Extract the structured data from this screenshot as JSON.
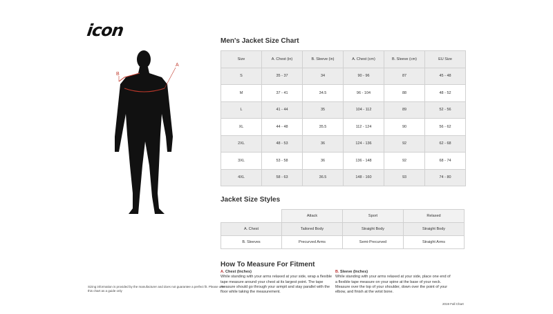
{
  "logo": "icon",
  "figure": {
    "label_a": "A",
    "label_b": "B",
    "accent": "#c0392b"
  },
  "size_chart": {
    "title": "Men's Jacket Size Chart",
    "headers": [
      "Size",
      "A. Chest (in)",
      "B. Sleeve (in)",
      "A. Chest (cm)",
      "B. Sleeve (cm)",
      "EU Size"
    ],
    "rows": [
      [
        "S",
        "35 - 37",
        "34",
        "90 - 96",
        "87",
        "45 - 48"
      ],
      [
        "M",
        "37 - 41",
        "34.5",
        "96 - 104",
        "88",
        "48 - 52"
      ],
      [
        "L",
        "41 - 44",
        "35",
        "104 - 112",
        "89",
        "52 - 56"
      ],
      [
        "XL",
        "44 - 48",
        "35.5",
        "112 - 124",
        "90",
        "56 - 62"
      ],
      [
        "2XL",
        "48 - 53",
        "36",
        "124 - 136",
        "92",
        "62 - 68"
      ],
      [
        "3XL",
        "53 - 58",
        "36",
        "136 - 148",
        "92",
        "68 - 74"
      ],
      [
        "4XL",
        "58 - 63",
        "36.5",
        "148 - 160",
        "93",
        "74 - 80"
      ]
    ]
  },
  "styles": {
    "title": "Jacket Size Styles",
    "headers": [
      "Attack",
      "Sport",
      "Relaxed"
    ],
    "rows": [
      [
        "A. Chest",
        "Tailored Body",
        "Straight Body",
        "Straight Body"
      ],
      [
        "B. Sleeves",
        "Precurved Arms",
        "Semi-Precurved",
        "Straight Arms"
      ]
    ]
  },
  "measure": {
    "title": "How To Measure For Fitment",
    "chest": {
      "letter": "A.",
      "label": "Chest (Inches)",
      "text": "While standing with your arms relaxed at your side, wrap a flexible tape measure around your chest at its largest point. The tape measure should go through your armpit and stay parallel with the floor while taking the measurement."
    },
    "sleeve": {
      "letter": "B.",
      "label": "Sleeve (Inches)",
      "text": "While standing with your arms relaxed at your side, place one end of a flexible tape measure on your spine at the base of your neck. Measure over the top of your shoulder, down over the point of your elbow, and finish at the wrist bone."
    }
  },
  "disclaimer": "Sizing information is provided by the manufacturer and does not guarantee a perfect fit. Please use this chart as a guide only",
  "footer": "2019 Fall Chart"
}
